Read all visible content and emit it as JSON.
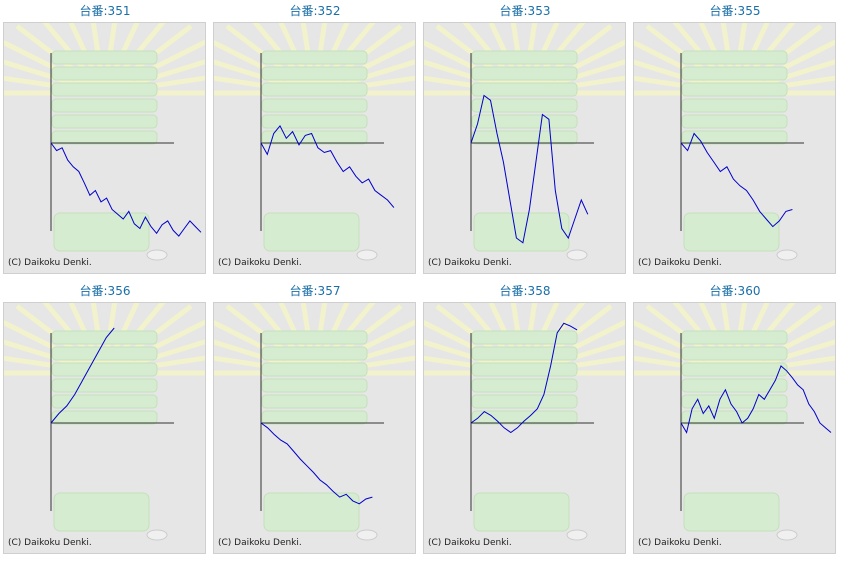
{
  "copyright": "(C) Daikoku Denki.",
  "colors": {
    "title": "#1a6fa8",
    "line": "#0000cc",
    "axis": "#333333",
    "panel": "#e6e6e6"
  },
  "chart_data": [
    {
      "type": "line",
      "title": "台番:351",
      "series": [
        {
          "values": [
            0,
            -0.08,
            -0.05,
            -0.18,
            -0.25,
            -0.3,
            -0.42,
            -0.55,
            -0.5,
            -0.62,
            -0.58,
            -0.7,
            -0.75,
            -0.8,
            -0.72,
            -0.85,
            -0.9,
            -0.78,
            -0.88,
            -0.95,
            -0.86,
            -0.82,
            -0.92,
            -0.98,
            -0.9,
            -0.82,
            -0.88,
            -0.94
          ]
        }
      ]
    },
    {
      "type": "line",
      "title": "台番:352",
      "series": [
        {
          "values": [
            0,
            -0.12,
            0.1,
            0.18,
            0.05,
            0.12,
            -0.02,
            0.08,
            0.1,
            -0.05,
            -0.1,
            -0.08,
            -0.2,
            -0.3,
            -0.25,
            -0.35,
            -0.42,
            -0.38,
            -0.5,
            -0.55,
            -0.6,
            -0.68
          ]
        }
      ]
    },
    {
      "type": "line",
      "title": "台番:353",
      "series": [
        {
          "values": [
            0,
            0.2,
            0.5,
            0.45,
            0.1,
            -0.2,
            -0.6,
            -1.0,
            -1.05,
            -0.7,
            -0.2,
            0.3,
            0.25,
            -0.5,
            -0.9,
            -1.0,
            -0.8,
            -0.6,
            -0.75
          ]
        }
      ]
    },
    {
      "type": "line",
      "title": "台番:355",
      "series": [
        {
          "values": [
            0,
            -0.08,
            0.1,
            0.02,
            -0.1,
            -0.2,
            -0.3,
            -0.25,
            -0.38,
            -0.45,
            -0.5,
            -0.6,
            -0.72,
            -0.8,
            -0.88,
            -0.82,
            -0.72,
            -0.7
          ]
        }
      ]
    },
    {
      "type": "line",
      "title": "台番:356",
      "series": [
        {
          "values": [
            0,
            0.1,
            0.18,
            0.3,
            0.45,
            0.6,
            0.75,
            0.9,
            1.0
          ]
        }
      ]
    },
    {
      "type": "line",
      "title": "台番:357",
      "series": [
        {
          "values": [
            0,
            -0.05,
            -0.12,
            -0.18,
            -0.22,
            -0.3,
            -0.38,
            -0.45,
            -0.52,
            -0.6,
            -0.65,
            -0.72,
            -0.78,
            -0.75,
            -0.82,
            -0.85,
            -0.8,
            -0.78
          ]
        }
      ]
    },
    {
      "type": "line",
      "title": "台番:358",
      "series": [
        {
          "values": [
            0,
            0.05,
            0.12,
            0.08,
            0.02,
            -0.05,
            -0.1,
            -0.05,
            0.02,
            0.08,
            0.15,
            0.3,
            0.6,
            0.95,
            1.05,
            1.02,
            0.98
          ]
        }
      ]
    },
    {
      "type": "line",
      "title": "台番:360",
      "series": [
        {
          "values": [
            0,
            -0.1,
            0.15,
            0.25,
            0.1,
            0.18,
            0.05,
            0.25,
            0.35,
            0.2,
            0.12,
            0.0,
            0.05,
            0.15,
            0.3,
            0.25,
            0.35,
            0.45,
            0.6,
            0.55,
            0.48,
            0.4,
            0.35,
            0.2,
            0.12,
            0.0,
            -0.05,
            -0.1
          ]
        }
      ]
    }
  ]
}
